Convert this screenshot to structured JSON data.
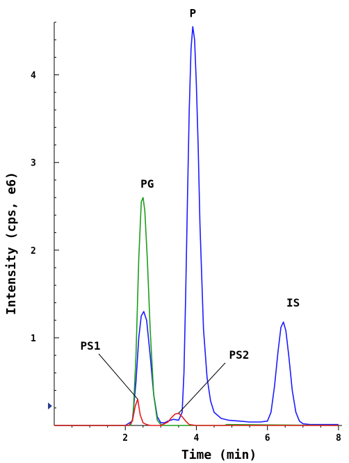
{
  "chart_data": {
    "type": "line",
    "xlabel": "Time (min)",
    "ylabel": "Intensity (cps, e6)",
    "xlim": [
      0,
      8.1
    ],
    "ylim": [
      0,
      4.6
    ],
    "x_ticks": [
      2,
      4,
      6,
      8
    ],
    "y_ticks": [
      1,
      2,
      3,
      4
    ],
    "series": [
      {
        "color": "#1a1aff",
        "x": [
          0,
          2.0,
          2.2,
          2.3,
          2.38,
          2.45,
          2.52,
          2.6,
          2.7,
          2.8,
          2.9,
          3.0,
          3.1,
          3.2,
          3.35,
          3.5,
          3.6,
          3.65,
          3.7,
          3.75,
          3.8,
          3.85,
          3.9,
          3.95,
          4.0,
          4.05,
          4.1,
          4.2,
          4.3,
          4.4,
          4.5,
          4.7,
          4.9,
          5.2,
          5.5,
          5.8,
          6.0,
          6.1,
          6.2,
          6.3,
          6.38,
          6.45,
          6.52,
          6.6,
          6.7,
          6.8,
          6.9,
          7.0,
          7.2,
          8.0
        ],
        "y": [
          0,
          0,
          0.05,
          0.5,
          1.0,
          1.25,
          1.3,
          1.2,
          0.8,
          0.35,
          0.1,
          0.03,
          0.03,
          0.05,
          0.07,
          0.06,
          0.15,
          0.6,
          1.5,
          2.6,
          3.6,
          4.3,
          4.55,
          4.4,
          3.9,
          3.2,
          2.3,
          1.1,
          0.55,
          0.28,
          0.15,
          0.08,
          0.06,
          0.05,
          0.04,
          0.04,
          0.05,
          0.15,
          0.45,
          0.85,
          1.12,
          1.18,
          1.08,
          0.8,
          0.4,
          0.15,
          0.05,
          0.02,
          0.01,
          0.01
        ]
      },
      {
        "color": "#1a9e1a",
        "x": [
          0,
          2.15,
          2.22,
          2.3,
          2.38,
          2.45,
          2.5,
          2.55,
          2.62,
          2.7,
          2.8,
          2.9,
          3.0,
          3.1,
          4.8,
          4.85,
          8.0
        ],
        "y": [
          0,
          0,
          0.1,
          0.8,
          1.9,
          2.55,
          2.6,
          2.45,
          1.9,
          1.1,
          0.35,
          0.06,
          0.01,
          0,
          0,
          0.01,
          0
        ],
        "dash": false
      },
      {
        "color": "#e81a1a",
        "x": [
          0,
          2.1,
          2.2,
          2.28,
          2.35,
          2.42,
          2.5,
          2.6,
          2.7,
          3.0,
          3.2,
          3.3,
          3.4,
          3.5,
          3.6,
          3.7,
          3.8,
          4.0,
          8.0
        ],
        "y": [
          0,
          0,
          0.05,
          0.22,
          0.3,
          0.12,
          0.03,
          0.01,
          0,
          0,
          0.04,
          0.09,
          0.13,
          0.14,
          0.1,
          0.05,
          0.01,
          0,
          0
        ]
      }
    ],
    "annotations": [
      {
        "text": "P",
        "peak_x": 3.9,
        "peak_y": 4.55
      },
      {
        "text": "PG",
        "peak_x": 2.5,
        "peak_y": 2.6
      },
      {
        "text": "IS",
        "peak_x": 6.45,
        "peak_y": 1.18
      },
      {
        "text": "PS1",
        "peak_x": 2.35,
        "peak_y": 0.3
      },
      {
        "text": "PS2",
        "peak_x": 3.5,
        "peak_y": 0.14
      }
    ]
  }
}
